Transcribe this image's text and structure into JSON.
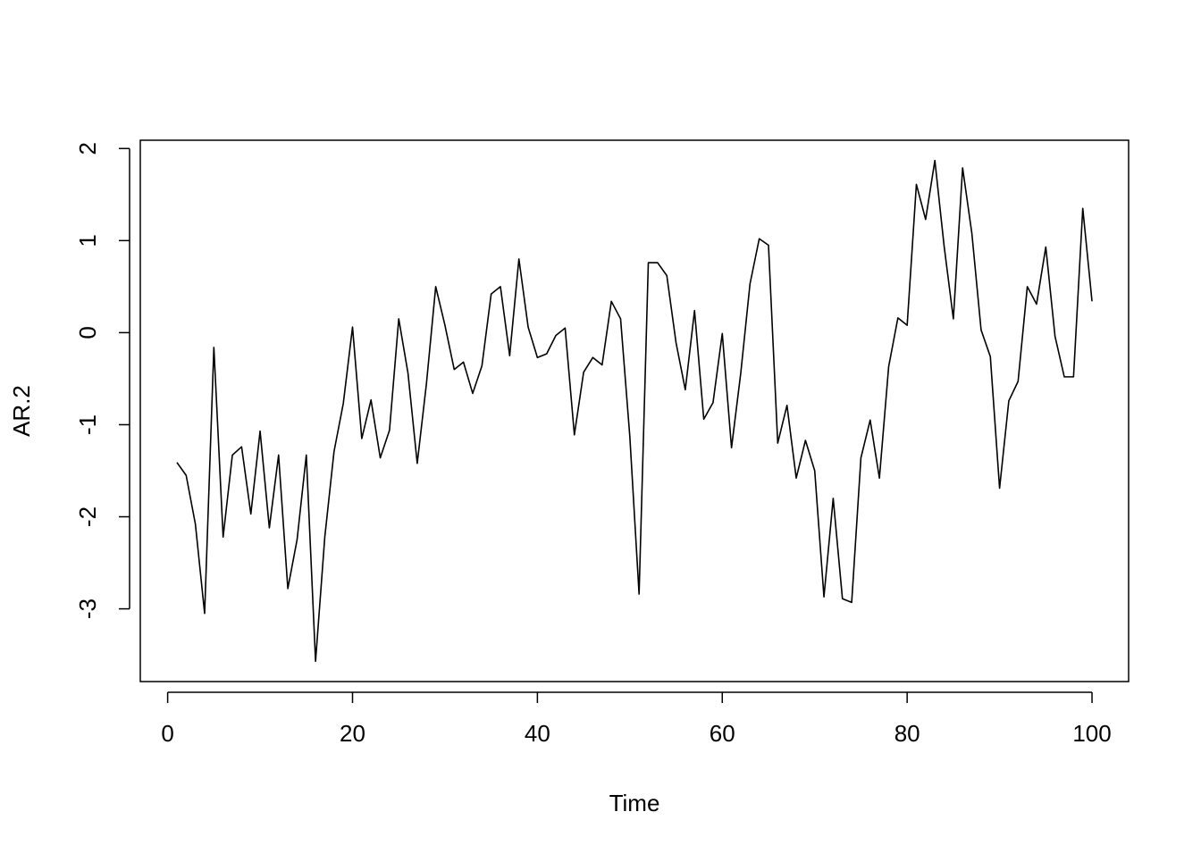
{
  "chart_data": {
    "type": "line",
    "xlabel": "Time",
    "ylabel": "AR.2",
    "color": "#000000",
    "grid": false,
    "x": [
      1,
      2,
      3,
      4,
      5,
      6,
      7,
      8,
      9,
      10,
      11,
      12,
      13,
      14,
      15,
      16,
      17,
      18,
      19,
      20,
      21,
      22,
      23,
      24,
      25,
      26,
      27,
      28,
      29,
      30,
      31,
      32,
      33,
      34,
      35,
      36,
      37,
      38,
      39,
      40,
      41,
      42,
      43,
      44,
      45,
      46,
      47,
      48,
      49,
      50,
      51,
      52,
      53,
      54,
      55,
      56,
      57,
      58,
      59,
      60,
      61,
      62,
      63,
      64,
      65,
      66,
      67,
      68,
      69,
      70,
      71,
      72,
      73,
      74,
      75,
      76,
      77,
      78,
      79,
      80,
      81,
      82,
      83,
      84,
      85,
      86,
      87,
      88,
      89,
      90,
      91,
      92,
      93,
      94,
      95,
      96,
      97,
      98,
      99,
      100
    ],
    "values": [
      -1.41,
      -1.55,
      -2.08,
      -3.05,
      -0.16,
      -2.22,
      -1.33,
      -1.24,
      -1.97,
      -1.07,
      -2.12,
      -1.33,
      -2.78,
      -2.25,
      -1.33,
      -3.57,
      -2.22,
      -1.29,
      -0.77,
      0.06,
      -1.15,
      -0.73,
      -1.36,
      -1.06,
      0.15,
      -0.44,
      -1.42,
      -0.55,
      0.5,
      0.08,
      -0.4,
      -0.32,
      -0.66,
      -0.36,
      0.42,
      0.5,
      -0.25,
      0.8,
      0.06,
      -0.27,
      -0.23,
      -0.03,
      0.05,
      -1.11,
      -0.43,
      -0.27,
      -0.35,
      0.34,
      0.15,
      -1.13,
      -2.84,
      0.76,
      0.76,
      0.62,
      -0.11,
      -0.62,
      0.24,
      -0.94,
      -0.76,
      -0.01,
      -1.25,
      -0.44,
      0.53,
      1.02,
      0.95,
      -1.2,
      -0.79,
      -1.58,
      -1.17,
      -1.5,
      -2.87,
      -1.8,
      -2.89,
      -2.93,
      -1.36,
      -0.95,
      -1.58,
      -0.37,
      0.16,
      0.08,
      1.61,
      1.23,
      1.87,
      0.94,
      0.15,
      1.79,
      1.08,
      0.03,
      -0.26,
      -1.69,
      -0.74,
      -0.53,
      0.5,
      0.31,
      0.93,
      -0.04,
      -0.48,
      -0.48,
      1.35,
      0.34
    ],
    "xlim": [
      -2.96,
      103.96
    ],
    "ylim": [
      -3.79,
      2.09
    ],
    "xticks": [
      0,
      20,
      40,
      60,
      80,
      100
    ],
    "yticks": [
      -3,
      -2,
      -1,
      0,
      1,
      2
    ]
  }
}
